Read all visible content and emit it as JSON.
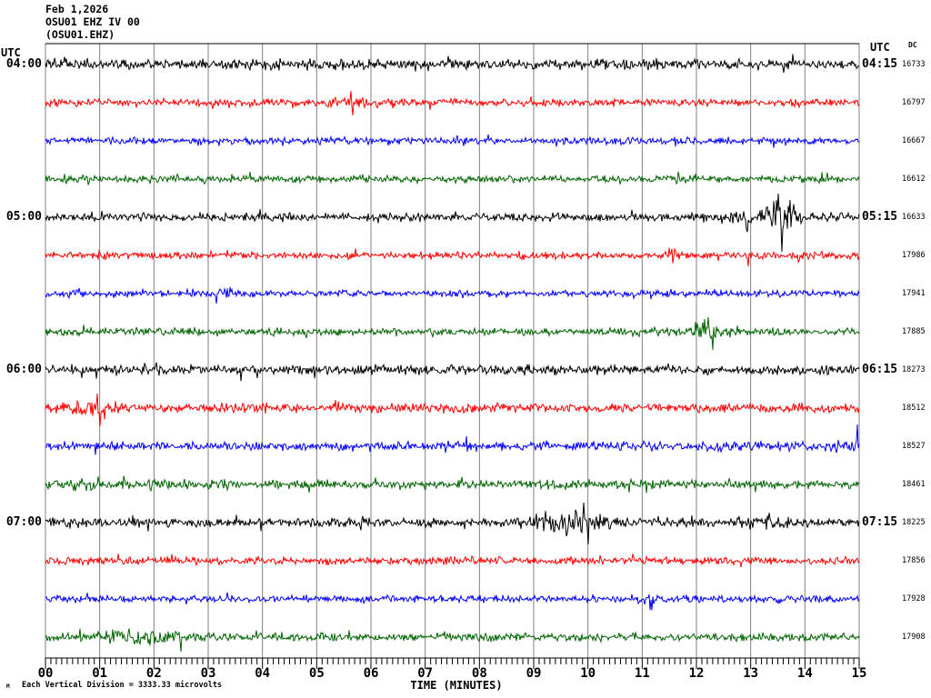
{
  "header": {
    "date": "Feb 1,2026",
    "station": "OSU01 EHZ IV 00",
    "channel": "(OSU01.EHZ)"
  },
  "labels": {
    "utc_left": "UTC",
    "utc_right": "UTC",
    "dc_header": "DC",
    "footer": "Each Vertical Division = 3333.33 microvolts",
    "footer_mark": "M"
  },
  "colors": {
    "black": "#000000",
    "red": "#ff0000",
    "blue": "#0000ff",
    "green": "#006400",
    "grid": "#808080",
    "background": "#ffffff"
  },
  "chart_data": {
    "type": "line",
    "kind": "seismogram-helicorder",
    "title": "OSU01 EHZ IV 00 (OSU01.EHZ) Feb 1,2026",
    "xlabel": "TIME (MINUTES)",
    "x_range_minutes": [
      0,
      15
    ],
    "minutes_per_line": 15,
    "x_ticks": [
      "00",
      "01",
      "02",
      "03",
      "04",
      "05",
      "06",
      "07",
      "08",
      "09",
      "10",
      "11",
      "12",
      "13",
      "14",
      "15"
    ],
    "vertical_division_microvolts": "3333.33",
    "left_times": [
      {
        "row": 0,
        "label": "04:00"
      },
      {
        "row": 4,
        "label": "05:00"
      },
      {
        "row": 8,
        "label": "06:00"
      },
      {
        "row": 12,
        "label": "07:00"
      }
    ],
    "right_times": [
      {
        "row": 0,
        "label": "04:15"
      },
      {
        "row": 4,
        "label": "05:15"
      },
      {
        "row": 8,
        "label": "06:15"
      },
      {
        "row": 12,
        "label": "07:15"
      }
    ],
    "traces": [
      {
        "color": "#000000",
        "dc": "16733",
        "base": 4.5,
        "events": [],
        "spikes": []
      },
      {
        "color": "#ff0000",
        "dc": "16797",
        "base": 3.2,
        "events": [
          {
            "m": 5.75,
            "w": 0.45,
            "a": 2
          }
        ],
        "spikes": [
          {
            "m": 5.63,
            "a": 13
          },
          {
            "m": 5.67,
            "a": -14
          }
        ]
      },
      {
        "color": "#0000ff",
        "dc": "16667",
        "base": 3.0,
        "events": [],
        "spikes": []
      },
      {
        "color": "#006400",
        "dc": "16612",
        "base": 3.0,
        "events": [],
        "spikes": []
      },
      {
        "color": "#000000",
        "dc": "16633",
        "base": 3.6,
        "events": [
          {
            "m": 13.55,
            "w": 0.22,
            "a": 14
          },
          {
            "m": 13.05,
            "w": 0.35,
            "a": 3
          }
        ],
        "spikes": [
          {
            "m": 13.5,
            "a": 26
          },
          {
            "m": 13.57,
            "a": -38
          },
          {
            "m": 13.73,
            "a": 19
          }
        ]
      },
      {
        "color": "#ff0000",
        "dc": "17986",
        "base": 3.2,
        "events": [
          {
            "m": 11.55,
            "w": 0.1,
            "a": 6
          }
        ],
        "spikes": [
          {
            "m": 12.95,
            "a": -12
          }
        ]
      },
      {
        "color": "#0000ff",
        "dc": "17941",
        "base": 3.0,
        "events": [
          {
            "m": 3.3,
            "w": 0.15,
            "a": 3
          }
        ],
        "spikes": [
          {
            "m": 3.15,
            "a": -11
          }
        ]
      },
      {
        "color": "#006400",
        "dc": "17885",
        "base": 3.2,
        "events": [
          {
            "m": 12.25,
            "w": 0.22,
            "a": 10
          }
        ],
        "spikes": [
          {
            "m": 12.22,
            "a": 16
          },
          {
            "m": 12.3,
            "a": -20
          }
        ]
      },
      {
        "color": "#000000",
        "dc": "18273",
        "base": 4.2,
        "events": [
          {
            "m": 2.2,
            "w": 0.12,
            "a": 4
          }
        ],
        "spikes": []
      },
      {
        "color": "#ff0000",
        "dc": "18512",
        "base": 3.8,
        "events": [
          {
            "m": 0.85,
            "w": 0.28,
            "a": 7
          }
        ],
        "spikes": [
          {
            "m": 0.95,
            "a": 16
          },
          {
            "m": 1.0,
            "a": -20
          }
        ]
      },
      {
        "color": "#0000ff",
        "dc": "18527",
        "base": 3.8,
        "events": [
          {
            "m": 13.5,
            "w": 1.0,
            "a": 1.5
          }
        ],
        "spikes": [
          {
            "m": 14.97,
            "a": 24
          }
        ]
      },
      {
        "color": "#006400",
        "dc": "18461",
        "base": 3.8,
        "events": [
          {
            "m": 0.4,
            "w": 0.4,
            "a": 2
          }
        ],
        "spikes": []
      },
      {
        "color": "#000000",
        "dc": "18225",
        "base": 4.0,
        "events": [
          {
            "m": 9.9,
            "w": 0.28,
            "a": 10
          },
          {
            "m": 9.3,
            "w": 0.3,
            "a": 4
          },
          {
            "m": 13.1,
            "w": 0.3,
            "a": 3
          }
        ],
        "spikes": [
          {
            "m": 9.93,
            "a": 22
          },
          {
            "m": 10.0,
            "a": -24
          },
          {
            "m": 9.6,
            "a": -15
          }
        ]
      },
      {
        "color": "#ff0000",
        "dc": "17856",
        "base": 3.4,
        "events": [],
        "spikes": []
      },
      {
        "color": "#0000ff",
        "dc": "17928",
        "base": 3.0,
        "events": [
          {
            "m": 11.1,
            "w": 0.12,
            "a": 3
          }
        ],
        "spikes": []
      },
      {
        "color": "#006400",
        "dc": "17908",
        "base": 3.5,
        "events": [
          {
            "m": 1.8,
            "w": 0.55,
            "a": 5
          }
        ],
        "spikes": [
          {
            "m": 2.5,
            "a": -16
          }
        ]
      }
    ]
  }
}
